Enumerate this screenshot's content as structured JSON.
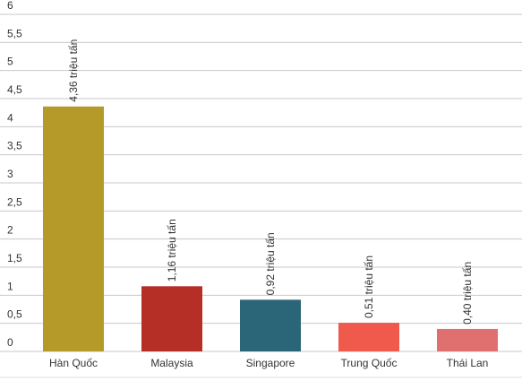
{
  "chart_data": {
    "type": "bar",
    "categories": [
      "Hàn Quốc",
      "Malaysia",
      "Singapore",
      "Trung Quốc",
      "Thái Lan"
    ],
    "values": [
      4.36,
      1.16,
      0.92,
      0.51,
      0.4
    ],
    "value_labels": [
      "4,36 triệu tấn",
      "1,16 triệu tấn",
      "0,92 triệu tấn",
      "0,51 triệu tấn",
      "0,40 triệu tấn"
    ],
    "colors": [
      "#b59a29",
      "#b52f26",
      "#2a6678",
      "#ef5a4c",
      "#e07070"
    ],
    "ylim": [
      0,
      6
    ],
    "yticks": [
      0,
      {
        "value": 0.5,
        "label": "0,5"
      },
      1,
      {
        "value": 1.5,
        "label": "1,5"
      },
      2,
      {
        "value": 2.5,
        "label": "2,5"
      },
      3,
      {
        "value": 3.5,
        "label": "3,5"
      },
      4,
      {
        "value": 4.5,
        "label": "4,5"
      },
      5,
      {
        "value": 5.5,
        "label": "5,5"
      },
      6
    ],
    "grid": true
  }
}
